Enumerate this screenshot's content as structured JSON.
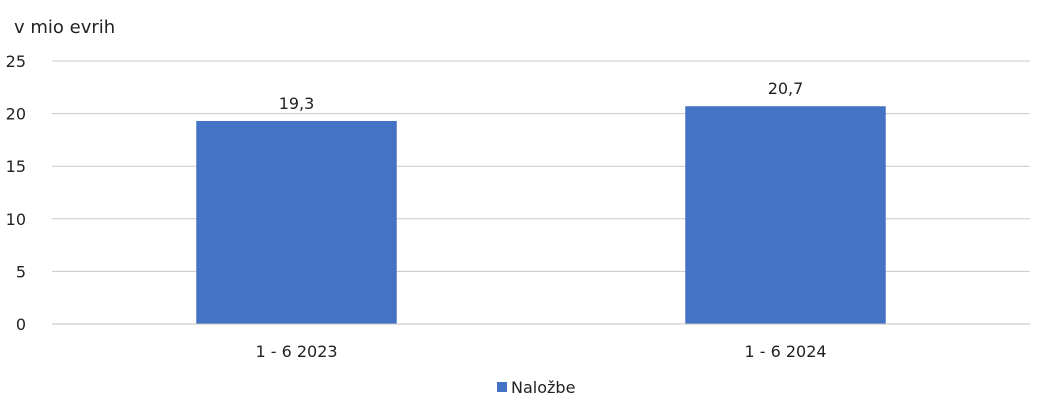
{
  "chart_data": {
    "type": "bar",
    "title": "",
    "unit_label": "v mio evrih",
    "xlabel": "",
    "ylabel": "",
    "categories": [
      "1 - 6 2023",
      "1 - 6 2024"
    ],
    "series": [
      {
        "name": "Naložbe",
        "values": [
          19.3,
          20.7
        ],
        "labels": [
          "19,3",
          "20,7"
        ],
        "color": "#4472c4"
      }
    ],
    "ylim": [
      0,
      25
    ],
    "yticks": [
      0,
      5,
      10,
      15,
      20,
      25
    ],
    "ytick_labels": [
      "0",
      "5",
      "10",
      "15",
      "20",
      "25"
    ],
    "grid": true,
    "legend": "bottom"
  }
}
